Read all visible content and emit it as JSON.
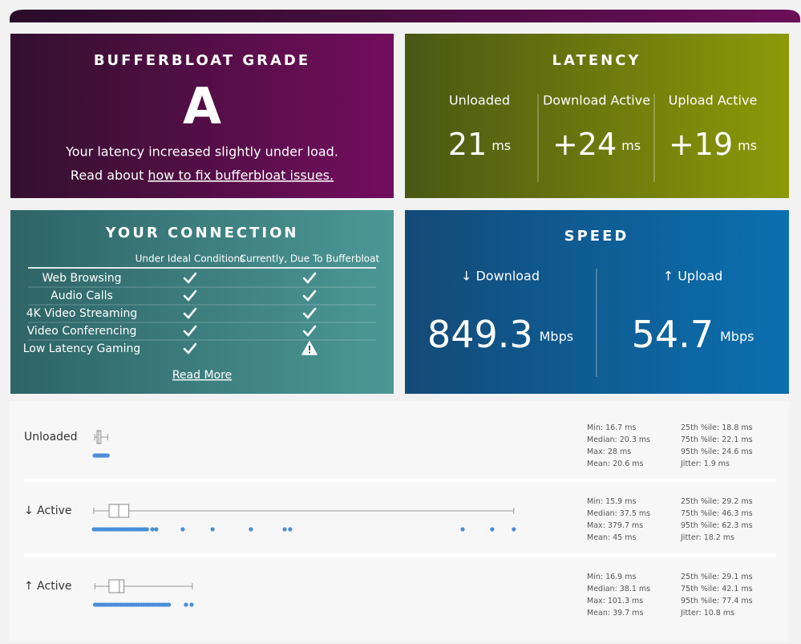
{
  "grade": {
    "title": "BUFFERBLOAT GRADE",
    "grade": "A",
    "message": "Your latency increased slightly under load.",
    "link_prefix": "Read about",
    "link_text": "how to fix bufferbloat issues."
  },
  "latency": {
    "title": "LATENCY",
    "columns": [
      {
        "label": "Unloaded",
        "value": 21,
        "unit": "ms"
      },
      {
        "label": "Download Active",
        "value": "+24",
        "unit": "ms"
      },
      {
        "label": "Upload Active",
        "value": "+19",
        "unit": "ms"
      }
    ]
  },
  "connection": {
    "title": "YOUR CONNECTION",
    "headers": [
      "Under Ideal Conditions",
      "Currently, Due To Bufferbloat"
    ],
    "rows": [
      {
        "name": "Web Browsing",
        "ideal": "ok",
        "current": "ok"
      },
      {
        "name": "Audio Calls",
        "ideal": "ok",
        "current": "ok"
      },
      {
        "name": "4K Video Streaming",
        "ideal": "ok",
        "current": "ok"
      },
      {
        "name": "Video Conferencing",
        "ideal": "ok",
        "current": "ok"
      },
      {
        "name": "Low Latency Gaming",
        "ideal": "ok",
        "current": "warning"
      }
    ],
    "read_more": "Read More"
  },
  "speed": {
    "title": "SPEED",
    "columns": [
      {
        "label": "↓ Download",
        "value": 849.3,
        "unit": "Mbps"
      },
      {
        "label": "↑ Upload",
        "value": 54.7,
        "unit": "Mbps"
      }
    ]
  },
  "latency_rows": [
    {
      "label": "Unloaded",
      "stats": {
        "min": {
          "label": "Min:",
          "value": 16.7,
          "unit": "ms"
        },
        "median": {
          "label": "Median:",
          "value": 20.3,
          "unit": "ms"
        },
        "max": {
          "label": "Max:",
          "value": 28,
          "unit": "ms"
        },
        "mean": {
          "label": "Mean:",
          "value": 20.6,
          "unit": "ms"
        },
        "p25": {
          "label": "25th %ile:",
          "value": 18.8,
          "unit": "ms"
        },
        "p75": {
          "label": "75th %ile:",
          "value": 22.1,
          "unit": "ms"
        },
        "p95": {
          "label": "95th %ile:",
          "value": 24.6,
          "unit": "ms"
        },
        "jitter": {
          "label": "Jitter:",
          "value": 1.9,
          "unit": "ms"
        }
      },
      "samples": [
        16.7,
        17.5,
        18.5,
        19.5,
        20.5,
        21.5,
        22.5,
        23.5,
        24.5,
        25.5,
        26.5,
        28
      ]
    },
    {
      "label": "↓ Active",
      "stats": {
        "min": {
          "label": "Min:",
          "value": 15.9,
          "unit": "ms"
        },
        "median": {
          "label": "Median:",
          "value": 37.5,
          "unit": "ms"
        },
        "max": {
          "label": "Max:",
          "value": 379.7,
          "unit": "ms"
        },
        "mean": {
          "label": "Mean:",
          "value": 45,
          "unit": "ms"
        },
        "p25": {
          "label": "25th %ile:",
          "value": 29.2,
          "unit": "ms"
        },
        "p75": {
          "label": "75th %ile:",
          "value": 46.3,
          "unit": "ms"
        },
        "p95": {
          "label": "95th %ile:",
          "value": 62.3,
          "unit": "ms"
        },
        "jitter": {
          "label": "Jitter:",
          "value": 18.2,
          "unit": "ms"
        }
      },
      "samples": [
        16,
        18,
        20,
        22,
        24,
        26,
        28,
        30,
        32,
        34,
        36,
        38,
        40,
        42,
        44,
        46,
        48,
        50,
        52,
        54,
        56,
        58,
        60,
        62,
        66.7,
        70.1,
        93,
        118.8,
        152,
        181.3,
        186,
        335.4,
        361,
        379.7
      ]
    },
    {
      "label": "↑ Active",
      "stats": {
        "min": {
          "label": "Min:",
          "value": 16.9,
          "unit": "ms"
        },
        "median": {
          "label": "Median:",
          "value": 38.1,
          "unit": "ms"
        },
        "max": {
          "label": "Max:",
          "value": 101.3,
          "unit": "ms"
        },
        "mean": {
          "label": "Mean:",
          "value": 39.7,
          "unit": "ms"
        },
        "p25": {
          "label": "25th %ile:",
          "value": 29.1,
          "unit": "ms"
        },
        "p75": {
          "label": "75th %ile:",
          "value": 42.1,
          "unit": "ms"
        },
        "p95": {
          "label": "95th %ile:",
          "value": 77.4,
          "unit": "ms"
        },
        "jitter": {
          "label": "Jitter:",
          "value": 10.8,
          "unit": "ms"
        }
      },
      "samples": [
        17,
        19,
        21,
        23,
        25,
        27,
        29,
        31,
        33,
        35,
        37,
        39,
        41,
        43,
        45,
        47,
        49,
        51,
        53,
        55,
        57,
        59,
        61,
        63,
        65,
        67,
        69,
        71,
        73,
        75,
        77,
        79,
        81,
        95.8,
        100.7
      ]
    }
  ]
}
